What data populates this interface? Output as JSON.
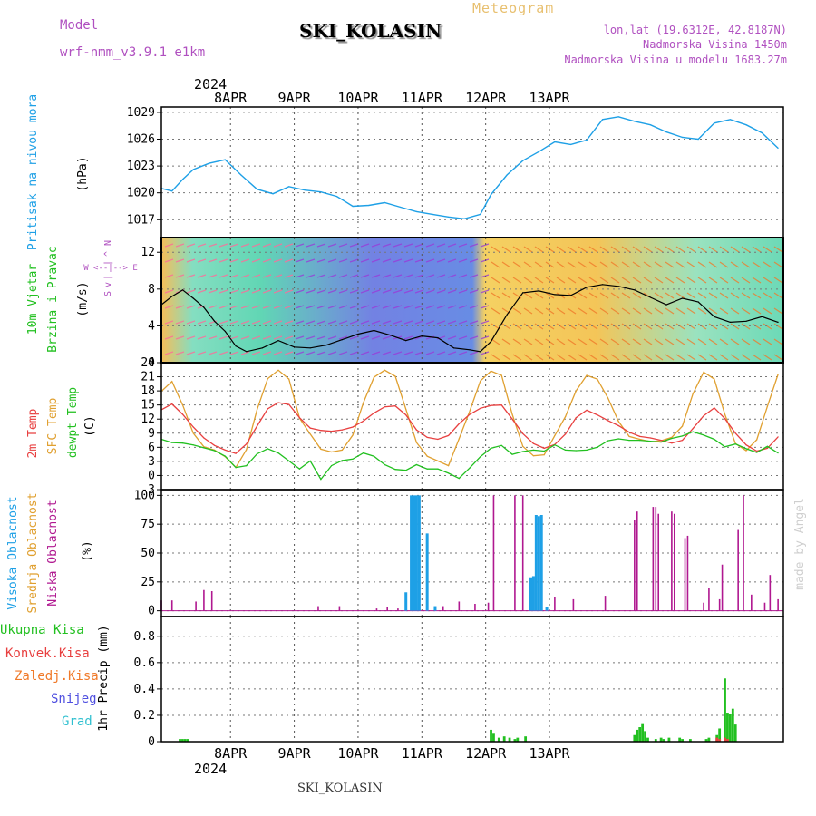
{
  "header": {
    "model_label": "Model",
    "model_name": "wrf-nmm_v3.9.1 e1km",
    "product": "Meteogram",
    "station_title": "SKI_KOLASIN",
    "lonlat": "lon,lat (19.6312E, 42.8187N)",
    "elevation": "Nadmorska Visina 1450m",
    "model_elevation": "Nadmorska Visina u modelu 1683.27m",
    "footer_station": "SKI_KOLASIN",
    "watermark": "made by Angel"
  },
  "colors": {
    "pressure": "#1ea0e6",
    "wind_label": "#22c020",
    "temp2m": "#e84040",
    "sfc": "#e0a030",
    "dew": "#22c020",
    "high_cloud": "#1ea0e6",
    "mid_cloud": "#e0a030",
    "low_cloud": "#b01890",
    "precip_total": "#22c020",
    "precip_conv": "#e84040",
    "axis_year": "#000000",
    "meta_text": "#b050c0"
  },
  "time_axis": {
    "year": "2024",
    "days": [
      "8APR",
      "9APR",
      "10APR",
      "11APR",
      "12APR",
      "13APR"
    ],
    "top_year": "2024",
    "bottom_year": "2024"
  },
  "panel_labels": {
    "pressure": [
      "Pritisak na nivou mora",
      "(hPa)"
    ],
    "wind": [
      "10m Vjetar",
      "Brzina i Pravac",
      "(m/s)"
    ],
    "compass": [
      "N",
      "^",
      "|",
      "W <--|--> E",
      "|",
      "v",
      "S"
    ],
    "temp": [
      "2m Temp",
      "SFC Temp",
      "dewpt Temp",
      "(C)"
    ],
    "cloud": [
      "Visoka Oblacnost",
      "Srednja Oblacnost",
      "Niska Oblacnost",
      "(%)"
    ],
    "precip": [
      "Ukupna Kisa",
      "Konvek.Kisa",
      "Zaledj.Kisa",
      "Snijeg",
      "Grad",
      "1hr Precip (mm)"
    ]
  },
  "chart_data": [
    {
      "type": "line",
      "title": "Pritisak na nivou mora",
      "ylabel": "(hPa)",
      "xunit": "hours since 8APR 00",
      "ylim": [
        1015.0,
        1029.6
      ],
      "yticks": [
        "1017",
        "1020",
        "1023",
        "1026",
        "1029"
      ],
      "series": [
        {
          "name": "Pritisak na nivou mora",
          "x": [
            -14,
            -10,
            -6,
            -2,
            4,
            10,
            16,
            22,
            28,
            34,
            40,
            46,
            52,
            58,
            64,
            70,
            76,
            82,
            88,
            94,
            100,
            106,
            110,
            116,
            122,
            128,
            134,
            140,
            146,
            152,
            158,
            164,
            170,
            176,
            182,
            188,
            194,
            200,
            206,
            212,
            218
          ],
          "values": [
            1020.5,
            1020.2,
            1021.5,
            1022.6,
            1023.3,
            1023.7,
            1022.0,
            1020.4,
            1019.9,
            1020.7,
            1020.3,
            1020.1,
            1019.6,
            1018.5,
            1018.6,
            1018.9,
            1018.4,
            1017.9,
            1017.6,
            1017.3,
            1017.1,
            1017.6,
            1019.8,
            1022.0,
            1023.6,
            1024.6,
            1025.7,
            1025.4,
            1025.9,
            1028.2,
            1028.5,
            1028.0,
            1027.6,
            1026.8,
            1026.2,
            1026.0,
            1027.8,
            1028.2,
            1027.6,
            1026.7,
            1025.0
          ]
        }
      ]
    },
    {
      "type": "line",
      "title": "10m Vjetar Brzina i Pravac",
      "ylabel": "(m/s)",
      "xunit": "hours since 8APR 00",
      "ylim": [
        0,
        13.6
      ],
      "yticks": [
        "0",
        "4",
        "8",
        "12"
      ],
      "series": [
        {
          "name": "10m Vjetar Brzina",
          "x": [
            -14,
            -10,
            -6,
            -2,
            2,
            6,
            10,
            14,
            18,
            24,
            30,
            36,
            42,
            48,
            54,
            60,
            66,
            72,
            78,
            84,
            90,
            96,
            102,
            106,
            110,
            116,
            122,
            128,
            134,
            140,
            146,
            152,
            158,
            164,
            170,
            176,
            182,
            188,
            194,
            200,
            206,
            212,
            218
          ],
          "values": [
            6.3,
            7.2,
            7.9,
            7.0,
            6.0,
            4.5,
            3.4,
            1.8,
            1.2,
            1.6,
            2.4,
            1.7,
            1.6,
            1.9,
            2.5,
            3.1,
            3.5,
            3.0,
            2.4,
            2.9,
            2.7,
            1.6,
            1.4,
            1.2,
            2.3,
            5.2,
            7.6,
            7.8,
            7.4,
            7.3,
            8.2,
            8.5,
            8.3,
            7.9,
            7.1,
            6.3,
            7.0,
            6.6,
            5.0,
            4.4,
            4.5,
            5.0,
            4.4
          ]
        }
      ]
    },
    {
      "type": "line",
      "title": "2m Temp / SFC Temp / dewpt Temp",
      "ylabel": "(C)",
      "xunit": "hours since 8APR 00",
      "ylim": [
        -3,
        24
      ],
      "yticks": [
        "-3",
        "0",
        "3",
        "6",
        "9",
        "12",
        "15",
        "18",
        "21",
        "24"
      ],
      "series": [
        {
          "name": "2m Temp",
          "x": [
            -14,
            -10,
            -6,
            -2,
            2,
            6,
            10,
            14,
            18,
            22,
            26,
            30,
            34,
            38,
            42,
            46,
            50,
            54,
            58,
            62,
            66,
            70,
            74,
            78,
            82,
            86,
            90,
            94,
            98,
            102,
            106,
            110,
            114,
            118,
            122,
            126,
            130,
            134,
            138,
            142,
            146,
            150,
            154,
            158,
            162,
            166,
            170,
            174,
            178,
            182,
            186,
            190,
            194,
            198,
            202,
            206,
            210,
            214,
            218
          ],
          "values": [
            14.0,
            15.2,
            13.0,
            10.3,
            8.0,
            6.4,
            5.4,
            4.7,
            6.7,
            10.5,
            14.2,
            15.5,
            15.1,
            12.3,
            10.1,
            9.6,
            9.4,
            9.7,
            10.3,
            11.6,
            13.3,
            14.6,
            14.8,
            12.9,
            9.7,
            8.1,
            7.7,
            8.5,
            11.0,
            13.0,
            14.3,
            14.9,
            15.0,
            12.0,
            8.9,
            6.8,
            5.8,
            6.6,
            8.8,
            12.3,
            13.9,
            12.9,
            11.7,
            10.6,
            9.2,
            8.3,
            8.0,
            7.5,
            6.9,
            7.5,
            10.0,
            12.7,
            14.4,
            12.1,
            9.0,
            6.5,
            5.2,
            5.8,
            8.2
          ]
        },
        {
          "name": "SFC Temp",
          "x": [
            -14,
            -10,
            -6,
            -2,
            2,
            6,
            10,
            14,
            18,
            22,
            26,
            30,
            34,
            38,
            42,
            46,
            50,
            54,
            58,
            62,
            66,
            70,
            74,
            78,
            82,
            86,
            90,
            94,
            98,
            102,
            106,
            110,
            114,
            118,
            122,
            126,
            130,
            134,
            138,
            142,
            146,
            150,
            154,
            158,
            162,
            166,
            170,
            174,
            178,
            182,
            186,
            190,
            194,
            198,
            202,
            206,
            210,
            214,
            218
          ],
          "values": [
            17.9,
            20.0,
            15.0,
            9.0,
            6.1,
            5.4,
            4.0,
            1.7,
            5.5,
            14.0,
            20.6,
            22.4,
            20.5,
            12.2,
            8.8,
            5.6,
            5.0,
            5.4,
            8.6,
            15.5,
            20.9,
            22.4,
            21.1,
            14.1,
            7.0,
            4.1,
            3.1,
            2.1,
            7.8,
            13.7,
            20.1,
            22.2,
            21.3,
            13.0,
            6.2,
            4.2,
            4.4,
            8.5,
            12.5,
            18.0,
            21.3,
            20.5,
            16.5,
            11.5,
            8.3,
            7.7,
            7.2,
            7.4,
            8.1,
            10.5,
            17.4,
            22.0,
            20.5,
            13.0,
            6.8,
            5.3,
            7.6,
            14.7,
            21.5
          ]
        },
        {
          "name": "dewpt Temp",
          "x": [
            -14,
            -10,
            -6,
            -2,
            2,
            6,
            10,
            14,
            18,
            22,
            26,
            30,
            34,
            38,
            42,
            46,
            50,
            54,
            58,
            62,
            66,
            70,
            74,
            78,
            82,
            86,
            90,
            94,
            98,
            102,
            106,
            110,
            114,
            118,
            122,
            126,
            130,
            134,
            138,
            142,
            146,
            150,
            154,
            158,
            162,
            166,
            170,
            174,
            178,
            182,
            186,
            190,
            194,
            198,
            202,
            206,
            210,
            214,
            218
          ],
          "values": [
            7.7,
            7.0,
            6.9,
            6.5,
            5.9,
            5.3,
            4.1,
            1.7,
            2.1,
            4.6,
            5.7,
            4.8,
            3.1,
            1.4,
            3.1,
            -0.8,
            2.1,
            3.2,
            3.5,
            4.8,
            4.1,
            2.3,
            1.3,
            1.1,
            2.3,
            1.4,
            1.4,
            0.5,
            -0.6,
            1.6,
            4.0,
            5.8,
            6.4,
            4.5,
            5.1,
            5.4,
            5.2,
            6.5,
            5.4,
            5.3,
            5.4,
            6.0,
            7.4,
            7.8,
            7.5,
            7.5,
            7.3,
            7.1,
            7.9,
            8.4,
            9.3,
            8.6,
            7.7,
            6.1,
            6.7,
            5.7,
            4.9,
            6.2,
            4.8
          ]
        }
      ]
    },
    {
      "type": "bar",
      "title": "Visoka / Srednja / Niska Oblacnost",
      "ylabel": "(%)",
      "xunit": "hours since 8APR 00",
      "ylim": [
        -5,
        105
      ],
      "yticks": [
        "0",
        "25",
        "50",
        "75",
        "100"
      ],
      "series": [
        {
          "name": "Visoka Oblacnost",
          "x": [
            78,
            80,
            81,
            82,
            83,
            86,
            89,
            125,
            126,
            127,
            128,
            129,
            131
          ],
          "values": [
            16,
            100,
            100,
            100,
            100,
            67,
            4,
            29,
            30,
            83,
            82,
            83,
            3
          ]
        },
        {
          "name": "Niska Oblacnost",
          "x": [
            -14,
            -10,
            -1,
            2,
            5,
            45,
            53,
            67,
            71,
            75,
            92,
            98,
            104,
            109,
            111,
            119,
            122,
            127,
            134,
            141,
            153,
            164,
            165,
            171,
            172,
            173,
            178,
            179,
            183,
            184,
            190,
            192,
            196,
            197,
            203,
            205,
            208,
            213,
            215,
            218
          ],
          "values": [
            9,
            9,
            8,
            18,
            17,
            4,
            4,
            2,
            3,
            2,
            4,
            8,
            6,
            7,
            100,
            100,
            100,
            5,
            12,
            10,
            13,
            79,
            86,
            90,
            90,
            84,
            86,
            84,
            63,
            65,
            7,
            20,
            10,
            40,
            70,
            100,
            14,
            7,
            31,
            10
          ]
        }
      ]
    },
    {
      "type": "bar",
      "title": "1hr Precip",
      "ylabel": "1hr Precip (mm)",
      "xunit": "hours since 8APR 00",
      "ylim": [
        0,
        0.95
      ],
      "yticks": [
        "0",
        "0.2",
        "0.4",
        "0.6",
        "0.8"
      ],
      "series": [
        {
          "name": "Ukupna Kisa",
          "x": [
            -7,
            -6,
            -5,
            -4,
            110,
            111,
            113,
            115,
            117,
            119,
            120,
            123,
            164,
            165,
            166,
            167,
            168,
            169,
            172,
            174,
            175,
            177,
            181,
            182,
            185,
            191,
            192,
            195,
            196,
            198,
            199,
            200,
            201,
            202
          ],
          "values": [
            0.02,
            0.02,
            0.02,
            0.02,
            0.09,
            0.06,
            0.03,
            0.04,
            0.03,
            0.02,
            0.03,
            0.04,
            0.05,
            0.09,
            0.11,
            0.14,
            0.08,
            0.03,
            0.02,
            0.03,
            0.02,
            0.03,
            0.03,
            0.02,
            0.02,
            0.02,
            0.03,
            0.05,
            0.1,
            0.48,
            0.22,
            0.21,
            0.25,
            0.13
          ]
        },
        {
          "name": "Konvek.Kisa",
          "x": [
            195,
            196,
            198,
            199
          ],
          "values": [
            0.03,
            0.02,
            0.03,
            0.02
          ]
        }
      ]
    }
  ]
}
